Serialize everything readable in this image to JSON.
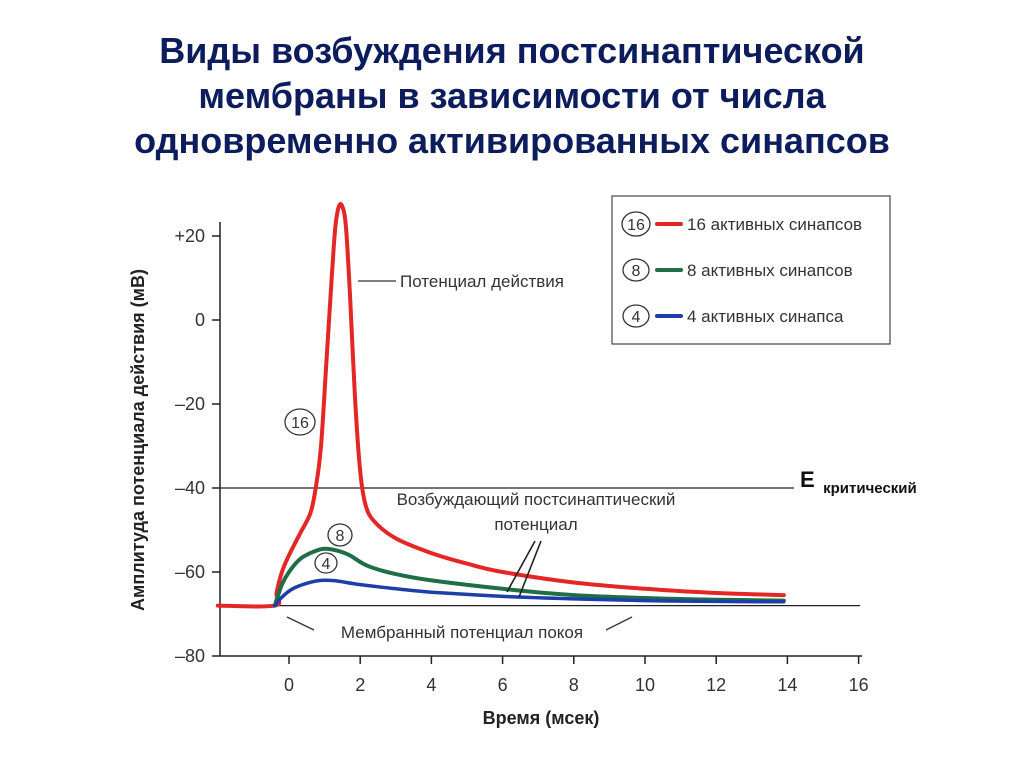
{
  "slide": {
    "title_lines": [
      "Виды возбуждения постсинаптической",
      "мембраны в зависимости от числа",
      "одновременно активированных синапсов"
    ]
  },
  "chart_data": {
    "type": "line",
    "xlabel": "Время (мсек)",
    "ylabel": "Амплитуда потенциала действия (мВ)",
    "xlim": [
      -2,
      16
    ],
    "ylim": [
      -80,
      25
    ],
    "x_ticks": [
      0,
      2,
      4,
      6,
      8,
      10,
      12,
      14,
      16
    ],
    "x_tick_labels": [
      "0",
      "2",
      "4",
      "6",
      "8",
      "10",
      "12",
      "14",
      "16"
    ],
    "y_ticks": [
      20,
      0,
      -20,
      -40,
      -60,
      -80
    ],
    "y_tick_labels": [
      "+20",
      "0",
      "–20",
      "–40",
      "–60",
      "–80"
    ],
    "series": [
      {
        "name": "16 активных синапсов",
        "marker": "16",
        "color": "#e32626",
        "points": [
          [
            -2,
            -68
          ],
          [
            -0.4,
            -68
          ],
          [
            -0.35,
            -65
          ],
          [
            -0.2,
            -60
          ],
          [
            0,
            -56
          ],
          [
            0.3,
            -51
          ],
          [
            0.6,
            -46
          ],
          [
            0.75,
            -40
          ],
          [
            0.9,
            -30
          ],
          [
            1.05,
            -10
          ],
          [
            1.2,
            10
          ],
          [
            1.3,
            22
          ],
          [
            1.4,
            27
          ],
          [
            1.5,
            27
          ],
          [
            1.6,
            22
          ],
          [
            1.72,
            5
          ],
          [
            1.85,
            -18
          ],
          [
            2.0,
            -36
          ],
          [
            2.15,
            -44
          ],
          [
            2.4,
            -48
          ],
          [
            3,
            -52
          ],
          [
            4,
            -55.5
          ],
          [
            5,
            -58
          ],
          [
            6,
            -60
          ],
          [
            8,
            -62.5
          ],
          [
            10,
            -64
          ],
          [
            12,
            -65
          ],
          [
            13.9,
            -65.5
          ]
        ]
      },
      {
        "name": "8 активных синапсов",
        "marker": "8",
        "color": "#1e6e46",
        "points": [
          [
            -0.4,
            -68
          ],
          [
            -0.2,
            -63
          ],
          [
            0,
            -60
          ],
          [
            0.3,
            -57
          ],
          [
            0.6,
            -55.5
          ],
          [
            0.95,
            -54.5
          ],
          [
            1.3,
            -54.8
          ],
          [
            1.7,
            -56
          ],
          [
            2.2,
            -58.5
          ],
          [
            3,
            -60.5
          ],
          [
            4,
            -62
          ],
          [
            6,
            -64
          ],
          [
            8,
            -65.5
          ],
          [
            10,
            -66.2
          ],
          [
            12,
            -66.6
          ],
          [
            13.9,
            -66.8
          ]
        ]
      },
      {
        "name": "4 активных синапса",
        "marker": "4",
        "color": "#1d3ea8",
        "points": [
          [
            -0.4,
            -68
          ],
          [
            -0.2,
            -66
          ],
          [
            0.1,
            -64
          ],
          [
            0.5,
            -62.7
          ],
          [
            0.9,
            -62
          ],
          [
            1.3,
            -62.1
          ],
          [
            2,
            -63
          ],
          [
            3,
            -64
          ],
          [
            4,
            -64.8
          ],
          [
            6,
            -65.8
          ],
          [
            8,
            -66.4
          ],
          [
            10,
            -66.8
          ],
          [
            12,
            -67
          ],
          [
            13.9,
            -67.1
          ]
        ]
      }
    ],
    "reference_lines": [
      {
        "name": "Мембранный потенциал покоя",
        "y": -68
      },
      {
        "name": "E критический",
        "y": -40
      }
    ],
    "annotations": {
      "action_potential": "Потенциал действия",
      "epsp_line1": "Возбуждающий постсинаптический",
      "epsp_line2": "потенциал",
      "resting": "Мембранный потенциал покоя",
      "e_crit_main": "Е",
      "e_crit_sub": "критический"
    },
    "legend_placement": "top-right",
    "grid": false
  }
}
